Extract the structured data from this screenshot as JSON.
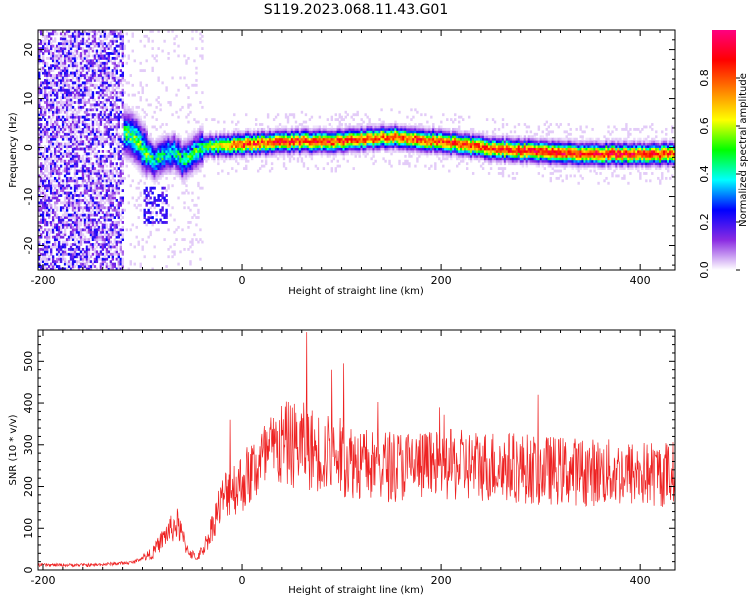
{
  "title": "S119.2023.068.11.43.G01",
  "chart_data": [
    {
      "type": "heatmap",
      "xlabel": "Height of straight line (km)",
      "ylabel": "Frequency (Hz)",
      "xlim": [
        -205,
        435
      ],
      "ylim": [
        -25,
        24
      ],
      "x_ticks": [
        -200,
        0,
        200,
        400
      ],
      "y_ticks": [
        -20,
        -10,
        0,
        10,
        20
      ],
      "colorbar": {
        "label": "Normalized spectral amplitude",
        "range": [
          0,
          1
        ],
        "ticks": [
          0.0,
          0.2,
          0.4,
          0.6,
          0.8
        ],
        "colors": [
          "#ffffff",
          "#8a2be2",
          "#0000ff",
          "#00ffff",
          "#00ff00",
          "#ffff00",
          "#ff8000",
          "#ff0000",
          "#ff0080"
        ]
      },
      "ridge": {
        "x": [
          -130,
          -110,
          -90,
          -70,
          -60,
          -40,
          0,
          50,
          100,
          150,
          200,
          250,
          300,
          350,
          400,
          435
        ],
        "frequency": [
          4,
          2,
          -3,
          -1,
          -3,
          0,
          0.5,
          1,
          1.2,
          2,
          1,
          -0.5,
          -1,
          -1.5,
          -1.5,
          -1.5
        ],
        "peak_amplitude": [
          0.45,
          0.55,
          0.5,
          0.45,
          0.5,
          0.5,
          0.85,
          0.85,
          0.85,
          0.8,
          0.85,
          0.85,
          0.9,
          0.9,
          0.9,
          0.85
        ]
      }
    },
    {
      "type": "line",
      "xlabel": "Height of straight line (km)",
      "ylabel": "SNR (10 * v/v)",
      "xlim": [
        -205,
        435
      ],
      "ylim": [
        0,
        575
      ],
      "x_ticks": [
        -200,
        0,
        200,
        400
      ],
      "y_ticks": [
        0,
        100,
        200,
        300,
        400,
        500
      ],
      "series_color": "#ee2222",
      "envelope": {
        "x": [
          -205,
          -150,
          -110,
          -90,
          -75,
          -65,
          -55,
          -45,
          -35,
          -25,
          -15,
          0,
          20,
          40,
          60,
          80,
          100,
          130,
          160,
          200,
          250,
          300,
          350,
          400,
          435
        ],
        "mean": [
          12,
          12,
          18,
          40,
          90,
          110,
          50,
          25,
          70,
          140,
          190,
          210,
          260,
          300,
          300,
          280,
          270,
          250,
          250,
          250,
          250,
          240,
          235,
          230,
          230
        ],
        "peaks": [
          {
            "x": 65,
            "value": 570
          },
          {
            "x": 90,
            "value": 480
          },
          {
            "x": 102,
            "value": 495
          },
          {
            "x": -12,
            "value": 360
          }
        ]
      }
    }
  ]
}
